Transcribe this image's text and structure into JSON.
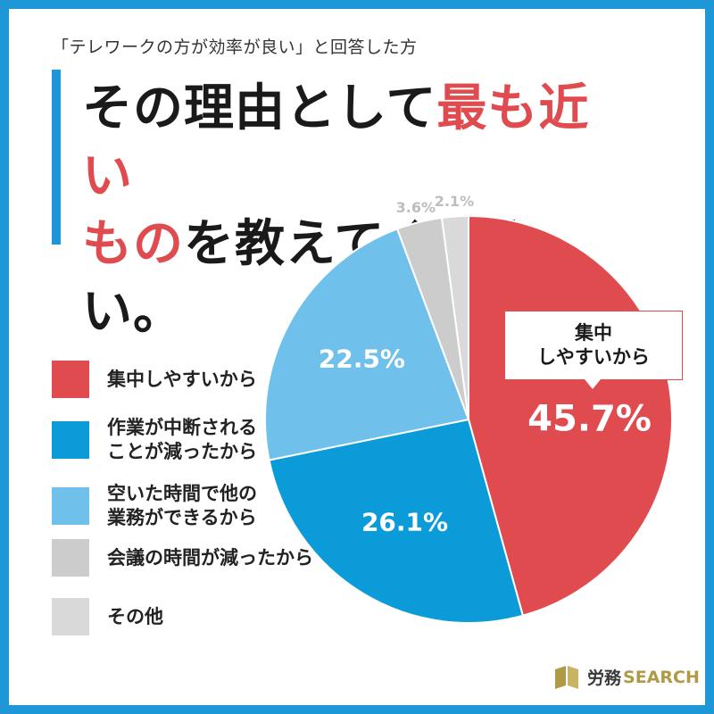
{
  "header": {
    "subtitle": "「テレワークの方が効率が良い」と回答した方",
    "title_part1": "その理由として",
    "title_highlight1": "最も近い",
    "title_highlight2": "もの",
    "title_part2": "を教えてください。"
  },
  "colors": {
    "accent_blue": "#1e97d8",
    "red": "#e04b4f",
    "blue": "#0b9bd9",
    "light_blue": "#6fc0ea",
    "gray": "#cccccc",
    "light_gray": "#d9d9d9"
  },
  "chart_data": {
    "type": "pie",
    "title": "その理由として最も近いものを教えてください。",
    "start": "top, clockwise",
    "slices": [
      {
        "label": "集中しやすいから",
        "value": 45.7,
        "display": "45.7%",
        "color": "#e04b4f"
      },
      {
        "label": "作業が中断されることが減ったから",
        "value": 26.1,
        "display": "26.1%",
        "color": "#0b9bd9"
      },
      {
        "label": "空いた時間で他の業務ができるから",
        "value": 22.5,
        "display": "22.5%",
        "color": "#6fc0ea"
      },
      {
        "label": "会議の時間が減ったから",
        "value": 3.6,
        "display": "3.6%",
        "color": "#cccccc"
      },
      {
        "label": "その他",
        "value": 2.1,
        "display": "2.1%",
        "color": "#d9d9d9"
      }
    ],
    "legend_position": "left"
  },
  "legend": [
    {
      "label": "集中しやすいから"
    },
    {
      "label": "作業が中断される\nことが減ったから"
    },
    {
      "label": "空いた時間で他の\n業務ができるから"
    },
    {
      "label": "会議の時間が減ったから"
    },
    {
      "label": "その他"
    }
  ],
  "callout": {
    "label": "集中\nしやすいから"
  },
  "logo": {
    "jp": "労務",
    "en": "SEARCH"
  }
}
